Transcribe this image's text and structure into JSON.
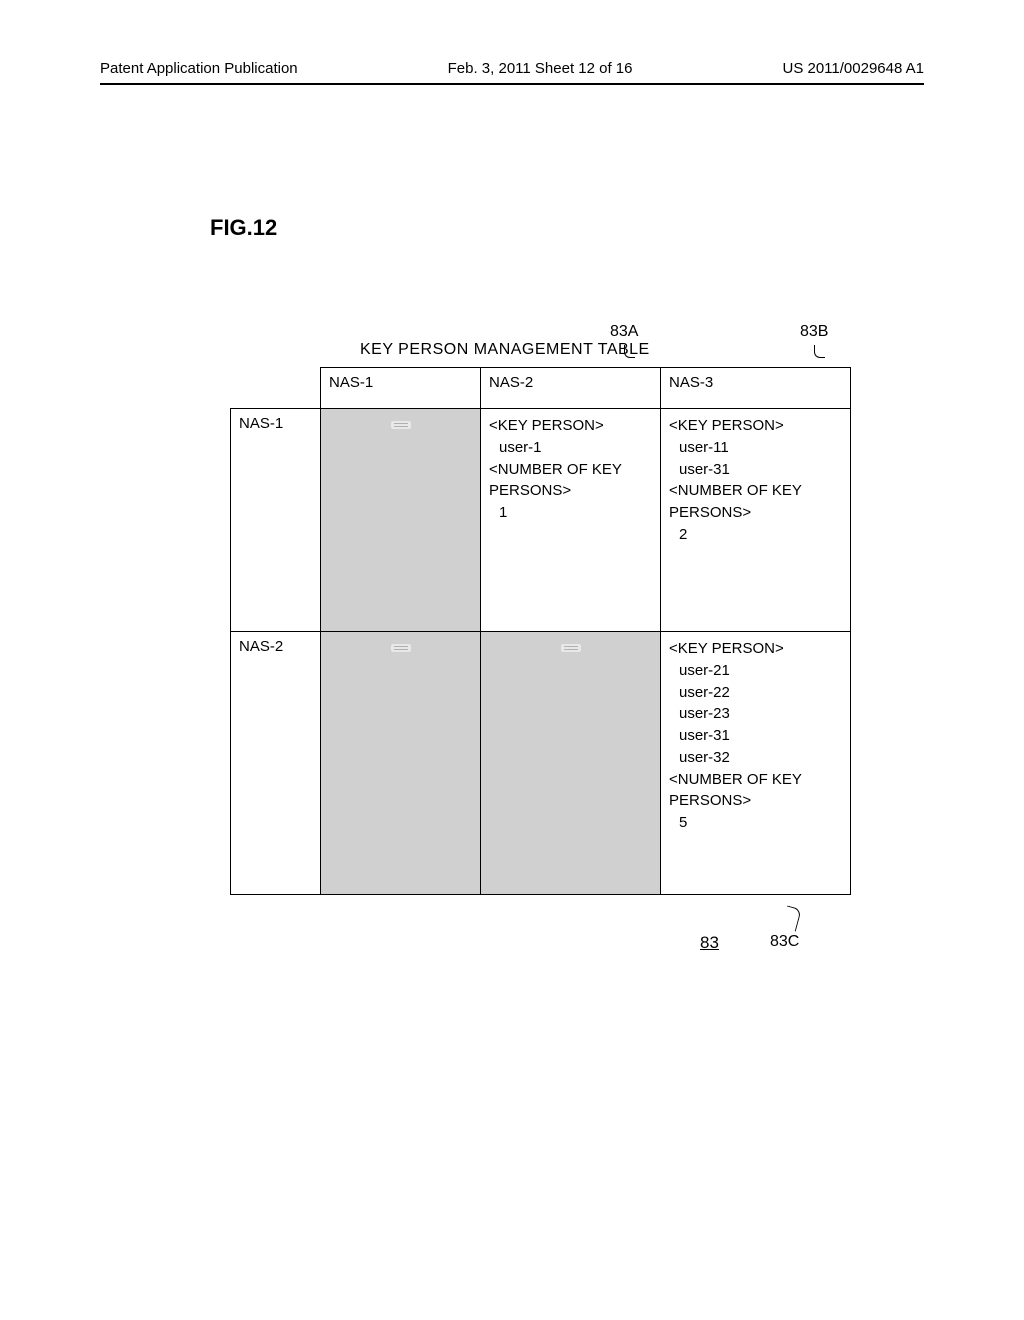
{
  "header": {
    "left": "Patent Application Publication",
    "mid": "Feb. 3, 2011  Sheet 12 of 16",
    "right": "US 2011/0029648 A1"
  },
  "figure": {
    "label": "FIG.12",
    "table_title": "KEY PERSON MANAGEMENT TABLE",
    "callouts": {
      "top_a": "83A",
      "top_b": "83B",
      "bottom_num": "83",
      "bottom_c": "83C"
    }
  },
  "table": {
    "columns": [
      "NAS-1",
      "NAS-2",
      "NAS-3"
    ],
    "rows": [
      {
        "label": "NAS-1",
        "cells": [
          {
            "shaded": true
          },
          {
            "key_person_header": "<KEY PERSON>",
            "users": [
              "user-1"
            ],
            "count_header": "<NUMBER OF KEY PERSONS>",
            "count": "1"
          },
          {
            "key_person_header": "<KEY PERSON>",
            "users": [
              "user-11",
              "user-31"
            ],
            "count_header": "<NUMBER OF KEY PERSONS>",
            "count": "2"
          }
        ]
      },
      {
        "label": "NAS-2",
        "cells": [
          {
            "shaded": true
          },
          {
            "shaded": true
          },
          {
            "key_person_header": "<KEY PERSON>",
            "users": [
              "user-21",
              "user-22",
              "user-23",
              "user-31",
              "user-32"
            ],
            "count_header": "<NUMBER OF KEY PERSONS>",
            "count": "5"
          }
        ]
      }
    ]
  }
}
